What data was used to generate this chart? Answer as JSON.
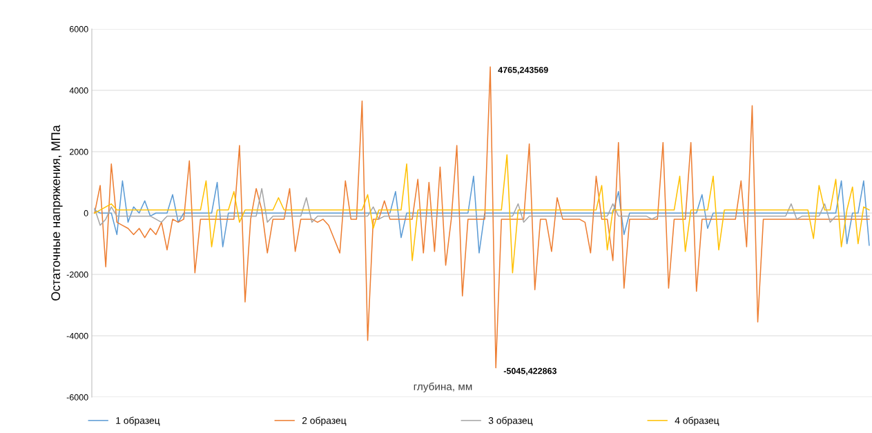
{
  "chart_data": {
    "type": "line",
    "ylabel": "Остаточные напряжения, МПа",
    "xlabel": "глубина, мм",
    "categories": [
      null,
      null,
      null,
      null,
      null,
      null,
      null,
      null,
      null,
      null,
      null,
      null,
      null,
      null,
      null,
      null,
      null,
      null,
      null,
      null,
      null,
      null,
      null,
      null,
      null,
      null,
      null,
      null,
      null,
      null,
      null,
      null,
      null,
      null,
      null,
      null,
      null,
      null,
      null,
      null,
      null,
      null,
      null,
      null,
      null,
      null,
      null,
      null,
      null,
      null,
      null,
      null,
      null,
      null,
      null,
      null,
      null,
      null,
      null,
      null,
      null,
      null,
      null,
      null,
      null,
      null,
      null,
      null,
      null,
      null,
      null,
      null,
      null,
      null,
      null,
      null,
      null,
      null,
      null,
      null,
      null,
      null,
      null,
      null,
      null,
      null,
      null,
      null,
      null,
      null,
      null,
      null,
      null,
      null,
      null,
      null,
      null,
      null,
      null,
      null,
      null,
      null,
      null,
      null,
      null,
      null,
      null,
      null,
      null,
      null,
      null,
      null,
      null,
      null,
      null,
      null,
      null,
      null,
      null,
      null,
      null,
      null,
      null,
      null,
      null,
      null,
      null,
      null,
      null,
      null,
      null,
      null,
      null,
      null,
      null,
      null,
      null,
      null,
      null,
      null
    ],
    "series": [
      {
        "name": "1 образец",
        "color": "#5b9bd5",
        "values": [
          100,
          0,
          0,
          0,
          -700,
          1050,
          -300,
          200,
          0,
          400,
          -100,
          0,
          0,
          0,
          600,
          -300,
          0,
          0,
          0,
          0,
          0,
          0,
          1000,
          -1100,
          0,
          0,
          0,
          0,
          0,
          0,
          0,
          0,
          0,
          0,
          0,
          0,
          0,
          0,
          0,
          0,
          0,
          0,
          0,
          0,
          0,
          0,
          0,
          0,
          0,
          0,
          0,
          0,
          0,
          0,
          700,
          -800,
          0,
          0,
          0,
          0,
          0,
          0,
          0,
          0,
          0,
          0,
          0,
          0,
          1200,
          -1300,
          0,
          0,
          0,
          0,
          0,
          0,
          0,
          0,
          0,
          0,
          0,
          0,
          0,
          0,
          0,
          0,
          0,
          0,
          0,
          0,
          0,
          0,
          0,
          0,
          700,
          -700,
          0,
          0,
          0,
          0,
          0,
          0,
          0,
          0,
          0,
          0,
          0,
          0,
          0,
          600,
          -500,
          0,
          0,
          0,
          0,
          0,
          0,
          0,
          0,
          0,
          0,
          0,
          0,
          0,
          0,
          0,
          0,
          0,
          0,
          0,
          0,
          0,
          0,
          0,
          1050,
          -1000,
          0,
          0,
          1050,
          -1050
        ]
      },
      {
        "name": "2 образец",
        "color": "#ed7d31",
        "values": [
          0,
          900,
          -1750,
          1600,
          -300,
          -400,
          -500,
          -700,
          -500,
          -800,
          -500,
          -700,
          -300,
          -1200,
          -200,
          -300,
          -200,
          1700,
          -1950,
          -200,
          -200,
          -200,
          -200,
          -200,
          -200,
          -200,
          2200,
          -2900,
          -200,
          800,
          100,
          -1300,
          -200,
          -200,
          -200,
          800,
          -1250,
          -200,
          -200,
          -200,
          -300,
          -200,
          -400,
          -850,
          -1300,
          1050,
          -200,
          -200,
          3650,
          -4150,
          -200,
          -200,
          400,
          -200,
          -200,
          -200,
          -200,
          -200,
          1100,
          -1300,
          1000,
          -1250,
          1500,
          -1700,
          -200,
          2200,
          -2700,
          -200,
          -200,
          -200,
          -200,
          4765.243569,
          -5045.422863,
          -200,
          -200,
          -200,
          -200,
          -200,
          2250,
          -2500,
          -200,
          -200,
          -1250,
          500,
          -200,
          -200,
          -200,
          -200,
          -300,
          -1300,
          1200,
          -200,
          -200,
          -1550,
          2300,
          -2450,
          -200,
          -200,
          -200,
          -200,
          -200,
          -200,
          2300,
          -2450,
          -200,
          -200,
          -200,
          2300,
          -2550,
          -200,
          -200,
          -200,
          -200,
          -200,
          -200,
          -200,
          1050,
          -1100,
          3500,
          -3550,
          -200,
          -200,
          -200,
          -200,
          -200,
          -200,
          -200,
          -200,
          -200,
          -200,
          -200,
          -200,
          -200,
          -200,
          -200,
          -200,
          -200,
          -200,
          -200,
          -200
        ],
        "value_labels": [
          null,
          null,
          null,
          null,
          null,
          null,
          null,
          null,
          null,
          null,
          null,
          null,
          null,
          null,
          null,
          null,
          null,
          null,
          null,
          null,
          null,
          null,
          null,
          null,
          null,
          null,
          null,
          null,
          null,
          null,
          null,
          null,
          null,
          null,
          null,
          null,
          null,
          null,
          null,
          null,
          null,
          null,
          null,
          null,
          null,
          null,
          null,
          null,
          null,
          null,
          null,
          null,
          null,
          null,
          null,
          null,
          null,
          null,
          null,
          null,
          null,
          null,
          null,
          null,
          null,
          null,
          null,
          null,
          null,
          null,
          null,
          "4765,243569",
          "-5045,422863",
          null,
          null,
          null,
          null,
          null,
          null,
          null,
          null,
          null,
          null,
          null,
          null,
          null,
          null,
          null,
          null,
          null,
          null,
          null,
          null,
          null,
          null,
          null,
          null,
          null,
          null,
          null,
          null,
          null,
          null,
          null,
          null,
          null,
          null,
          null,
          null,
          null,
          null,
          null,
          null,
          null,
          null,
          null,
          null,
          null,
          null,
          null,
          null,
          null,
          null,
          null,
          null,
          null,
          null,
          null,
          null,
          null,
          null,
          null,
          null,
          null,
          null,
          null,
          null,
          null,
          null,
          null
        ]
      },
      {
        "name": "3 образец",
        "color": "#a5a5a5",
        "values": [
          150,
          -400,
          -200,
          200,
          -100,
          -100,
          -100,
          -100,
          -100,
          -100,
          -100,
          -200,
          -300,
          -100,
          -100,
          -100,
          -100,
          -100,
          -100,
          -100,
          -100,
          -100,
          -100,
          -100,
          -100,
          -100,
          -100,
          -100,
          -100,
          -100,
          800,
          -300,
          -100,
          -100,
          -100,
          -100,
          -100,
          -100,
          500,
          -300,
          -100,
          -100,
          -100,
          -100,
          -100,
          -100,
          -100,
          -100,
          -100,
          -100,
          200,
          -200,
          -100,
          -100,
          -100,
          -100,
          -100,
          -100,
          -100,
          -100,
          -100,
          -100,
          -100,
          -100,
          -100,
          -100,
          -100,
          -100,
          -100,
          -100,
          -100,
          -100,
          -100,
          -100,
          -100,
          -100,
          300,
          -300,
          -100,
          -100,
          -100,
          -100,
          -100,
          -100,
          -100,
          -100,
          -100,
          -100,
          -100,
          -100,
          -100,
          -100,
          -100,
          300,
          -100,
          -100,
          -100,
          -100,
          -100,
          -100,
          -200,
          -100,
          -100,
          -100,
          -100,
          -100,
          -100,
          -100,
          -100,
          -100,
          -100,
          -100,
          -100,
          -100,
          -100,
          -100,
          -100,
          -100,
          -100,
          -100,
          -100,
          -100,
          -100,
          -100,
          -100,
          300,
          -200,
          -100,
          -100,
          -100,
          -100,
          300,
          -300,
          -100,
          -100,
          -100,
          -100,
          -100,
          -100,
          -100
        ]
      },
      {
        "name": "4 образец",
        "color": "#ffc000",
        "values": [
          0,
          100,
          200,
          300,
          100,
          100,
          100,
          100,
          100,
          100,
          100,
          100,
          100,
          100,
          100,
          100,
          100,
          100,
          100,
          100,
          1050,
          -1100,
          100,
          100,
          100,
          700,
          -300,
          100,
          100,
          100,
          100,
          100,
          100,
          500,
          100,
          100,
          100,
          100,
          100,
          100,
          100,
          100,
          100,
          100,
          100,
          100,
          100,
          100,
          100,
          600,
          -500,
          100,
          100,
          100,
          100,
          100,
          1600,
          -1550,
          100,
          100,
          100,
          100,
          100,
          100,
          100,
          100,
          100,
          100,
          100,
          100,
          100,
          100,
          100,
          100,
          1900,
          -1950,
          100,
          100,
          100,
          100,
          100,
          100,
          100,
          100,
          100,
          100,
          100,
          100,
          100,
          100,
          100,
          900,
          -1200,
          100,
          100,
          100,
          100,
          100,
          100,
          100,
          100,
          100,
          100,
          100,
          100,
          1200,
          -1250,
          100,
          100,
          100,
          100,
          1200,
          -1200,
          100,
          100,
          100,
          100,
          100,
          100,
          100,
          100,
          100,
          100,
          100,
          100,
          100,
          100,
          100,
          100,
          -830,
          900,
          100,
          100,
          1100,
          -1100,
          100,
          850,
          -1000,
          200,
          100
        ]
      }
    ],
    "ylim": [
      -6000,
      6000
    ],
    "yticks": [
      -6000,
      -4000,
      -2000,
      0,
      2000,
      4000,
      6000
    ],
    "tick_labels": "y",
    "grid": "y",
    "legend": "bottom"
  }
}
